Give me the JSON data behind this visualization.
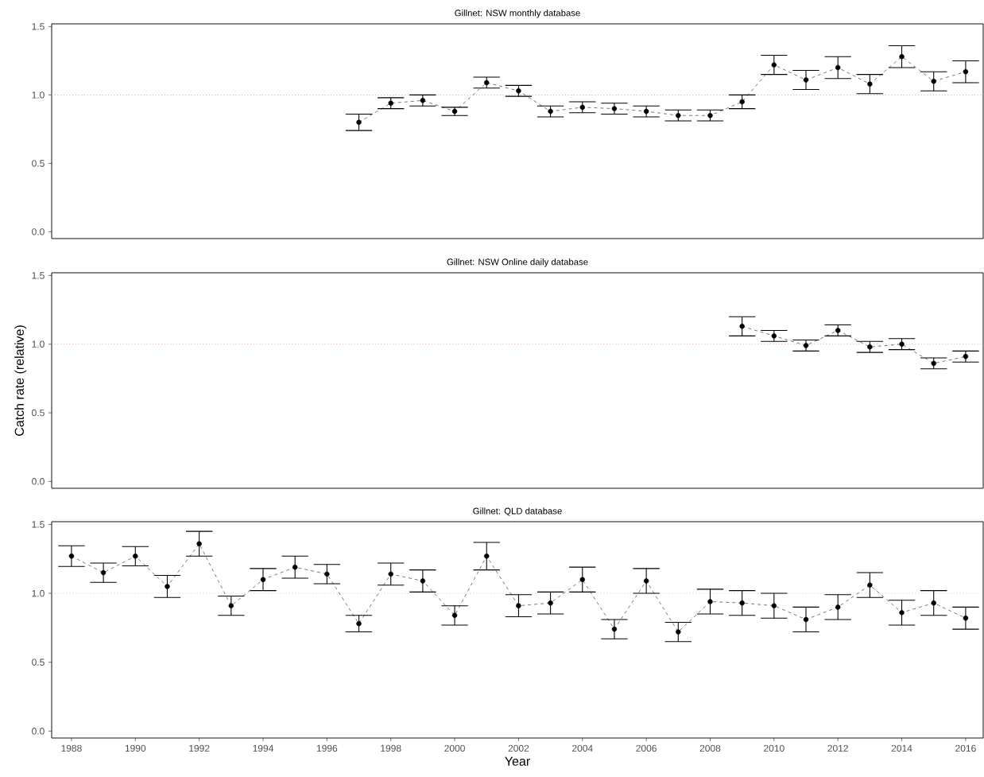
{
  "chart_data": [
    {
      "type": "line",
      "title": "Gillnet: NSW monthly database",
      "tick_labels": "y",
      "marker": "circle",
      "line_style": "dashed",
      "grid": false,
      "xlim": [
        1987.38,
        2016.55
      ],
      "xticks": [
        1988,
        1990,
        1992,
        1994,
        1996,
        1998,
        2000,
        2002,
        2004,
        2006,
        2008,
        2010,
        2012,
        2014,
        2016
      ],
      "ylim": [
        -0.05,
        1.52
      ],
      "yticks": [
        {
          "value": 0,
          "label": "0.0"
        },
        {
          "value": 0.5,
          "label": "0.5"
        },
        {
          "value": 1,
          "label": "1.0"
        },
        {
          "value": 1.5,
          "label": "1.5"
        }
      ],
      "ref_lines": [
        {
          "axis": "y",
          "value": 1,
          "color": "#f4a0a0",
          "line_style": "dotted"
        }
      ],
      "series": [
        {
          "color": "#000000",
          "x": [
            1997,
            1998,
            1999,
            2000,
            2001,
            2002,
            2003,
            2004,
            2005,
            2006,
            2007,
            2008,
            2009,
            2010,
            2011,
            2012,
            2013,
            2014,
            2015,
            2016
          ],
          "values": [
            0.8,
            0.94,
            0.96,
            0.88,
            1.09,
            1.03,
            0.88,
            0.91,
            0.9,
            0.88,
            0.85,
            0.85,
            0.95,
            1.22,
            1.11,
            1.2,
            1.08,
            1.28,
            1.1,
            1.17
          ],
          "errors": [
            0.06,
            0.04,
            0.04,
            0.03,
            0.04,
            0.04,
            0.04,
            0.04,
            0.04,
            0.04,
            0.04,
            0.04,
            0.05,
            0.07,
            0.07,
            0.08,
            0.07,
            0.08,
            0.07,
            0.08
          ]
        }
      ]
    },
    {
      "type": "line",
      "title": "Gillnet: NSW Online daily database",
      "ylabel": "Catch rate (relative)",
      "tick_labels": "y",
      "marker": "circle",
      "line_style": "dashed",
      "grid": false,
      "xlim": [
        1987.38,
        2016.55
      ],
      "xticks": [
        1988,
        1990,
        1992,
        1994,
        1996,
        1998,
        2000,
        2002,
        2004,
        2006,
        2008,
        2010,
        2012,
        2014,
        2016
      ],
      "ylim": [
        -0.05,
        1.52
      ],
      "yticks": [
        {
          "value": 0,
          "label": "0.0"
        },
        {
          "value": 0.5,
          "label": "0.5"
        },
        {
          "value": 1,
          "label": "1.0"
        },
        {
          "value": 1.5,
          "label": "1.5"
        }
      ],
      "ref_lines": [
        {
          "axis": "y",
          "value": 1,
          "color": "#f4a0a0",
          "line_style": "dotted"
        }
      ],
      "series": [
        {
          "color": "#000000",
          "x": [
            2009,
            2010,
            2011,
            2012,
            2013,
            2014,
            2015,
            2016
          ],
          "values": [
            1.13,
            1.06,
            0.99,
            1.1,
            0.98,
            1.0,
            0.86,
            0.91
          ],
          "errors": [
            0.07,
            0.04,
            0.04,
            0.04,
            0.04,
            0.04,
            0.04,
            0.04
          ]
        }
      ]
    },
    {
      "type": "line",
      "title": "Gillnet: QLD database",
      "xlabel": "Year",
      "marker": "circle",
      "line_style": "dashed",
      "grid": false,
      "xlim": [
        1987.38,
        2016.55
      ],
      "xticks": [
        1988,
        1990,
        1992,
        1994,
        1996,
        1998,
        2000,
        2002,
        2004,
        2006,
        2008,
        2010,
        2012,
        2014,
        2016
      ],
      "ylim": [
        -0.05,
        1.52
      ],
      "yticks": [
        {
          "value": 0,
          "label": "0.0"
        },
        {
          "value": 0.5,
          "label": "0.5"
        },
        {
          "value": 1,
          "label": "1.0"
        },
        {
          "value": 1.5,
          "label": "1.5"
        }
      ],
      "ref_lines": [
        {
          "axis": "y",
          "value": 1,
          "color": "#f4a0a0",
          "line_style": "dotted"
        }
      ],
      "series": [
        {
          "color": "#000000",
          "x": [
            1988,
            1989,
            1990,
            1991,
            1992,
            1993,
            1994,
            1995,
            1996,
            1997,
            1998,
            1999,
            2000,
            2001,
            2002,
            2003,
            2004,
            2005,
            2006,
            2007,
            2008,
            2009,
            2010,
            2011,
            2012,
            2013,
            2014,
            2015,
            2016
          ],
          "values": [
            1.27,
            1.15,
            1.27,
            1.05,
            1.36,
            0.91,
            1.1,
            1.19,
            1.14,
            0.78,
            1.14,
            1.09,
            0.84,
            1.27,
            0.91,
            0.93,
            1.1,
            0.74,
            1.09,
            0.72,
            0.94,
            0.93,
            0.91,
            0.81,
            0.9,
            1.06,
            0.86,
            0.93,
            0.82
          ],
          "errors": [
            0.075,
            0.07,
            0.07,
            0.08,
            0.09,
            0.07,
            0.08,
            0.08,
            0.07,
            0.06,
            0.08,
            0.08,
            0.07,
            0.1,
            0.08,
            0.08,
            0.09,
            0.07,
            0.09,
            0.07,
            0.09,
            0.09,
            0.09,
            0.09,
            0.09,
            0.09,
            0.09,
            0.09,
            0.08
          ]
        }
      ]
    }
  ]
}
